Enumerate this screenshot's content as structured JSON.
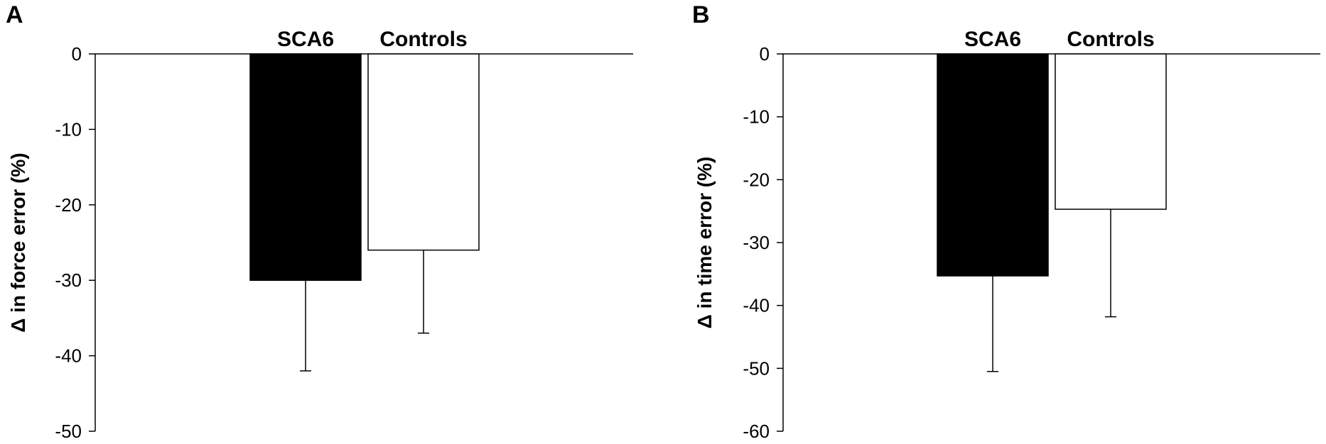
{
  "chart_data": [
    {
      "panel": "A",
      "type": "bar",
      "ylabel": "Δ in force error (%)",
      "ylim": [
        -50,
        0
      ],
      "yticks": [
        0,
        -10,
        -20,
        -30,
        -40,
        -50
      ],
      "categories": [
        "SCA6",
        "Controls"
      ],
      "values": [
        -30,
        -26
      ],
      "error_bars": [
        12,
        11
      ],
      "colors": [
        "#000000",
        "#ffffff"
      ],
      "category_label_position": "top",
      "grid": false
    },
    {
      "panel": "B",
      "type": "bar",
      "ylabel": "Δ in time error (%)",
      "ylim": [
        -60,
        0
      ],
      "yticks": [
        0,
        -10,
        -20,
        -30,
        -40,
        -50,
        -60
      ],
      "categories": [
        "SCA6",
        "Controls"
      ],
      "values": [
        -35.3,
        -24.7
      ],
      "error_bars": [
        15.2,
        17.1
      ],
      "colors": [
        "#000000",
        "#ffffff"
      ],
      "category_label_position": "top",
      "grid": false
    }
  ]
}
